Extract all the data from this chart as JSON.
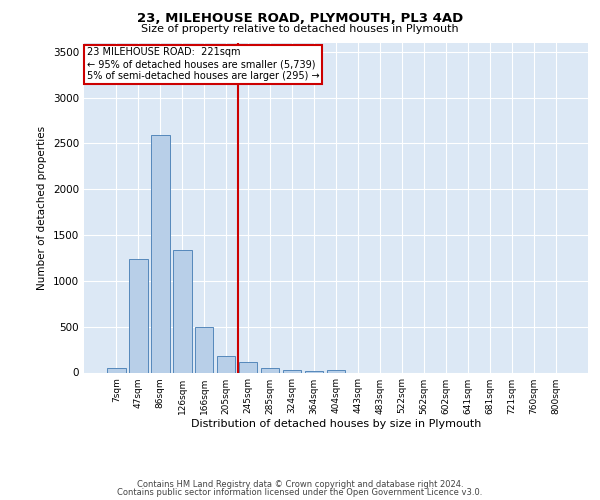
{
  "title": "23, MILEHOUSE ROAD, PLYMOUTH, PL3 4AD",
  "subtitle": "Size of property relative to detached houses in Plymouth",
  "xlabel": "Distribution of detached houses by size in Plymouth",
  "ylabel": "Number of detached properties",
  "bin_labels": [
    "7sqm",
    "47sqm",
    "86sqm",
    "126sqm",
    "166sqm",
    "205sqm",
    "245sqm",
    "285sqm",
    "324sqm",
    "364sqm",
    "404sqm",
    "443sqm",
    "483sqm",
    "522sqm",
    "562sqm",
    "602sqm",
    "641sqm",
    "681sqm",
    "721sqm",
    "760sqm",
    "800sqm"
  ],
  "bar_values": [
    50,
    1240,
    2590,
    1340,
    495,
    185,
    110,
    50,
    25,
    15,
    30,
    0,
    0,
    0,
    0,
    0,
    0,
    0,
    0,
    0,
    0
  ],
  "bar_color": "#b8cfe8",
  "bar_edge_color": "#5588bb",
  "vline_color": "#cc0000",
  "annotation_box_text": "23 MILEHOUSE ROAD:  221sqm\n← 95% of detached houses are smaller (5,739)\n5% of semi-detached houses are larger (295) →",
  "annotation_box_color": "#cc0000",
  "annotation_text_color": "#000000",
  "ylim": [
    0,
    3600
  ],
  "yticks": [
    0,
    500,
    1000,
    1500,
    2000,
    2500,
    3000,
    3500
  ],
  "bg_color": "#dce8f5",
  "grid_color": "#ffffff",
  "footer_line1": "Contains HM Land Registry data © Crown copyright and database right 2024.",
  "footer_line2": "Contains public sector information licensed under the Open Government Licence v3.0."
}
